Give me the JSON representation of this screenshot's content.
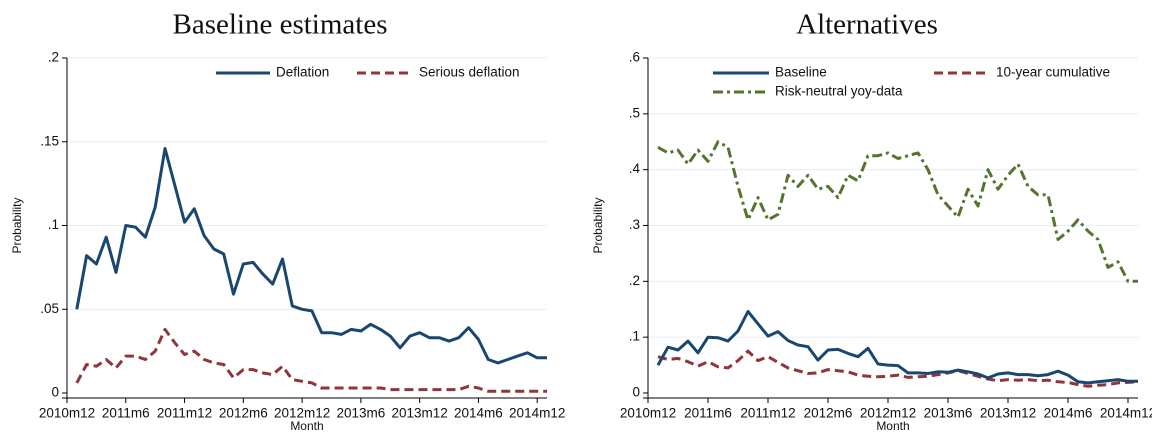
{
  "chart_data": [
    {
      "type": "line",
      "title": "Baseline estimates",
      "xlabel": "Month",
      "ylabel": "Probability",
      "ylim": [
        0,
        0.2
      ],
      "yticks": [
        0,
        0.05,
        0.1,
        0.15,
        0.2
      ],
      "yticklabels": [
        "0",
        ".05",
        ".1",
        ".15",
        ".2"
      ],
      "xlim": [
        -1,
        48
      ],
      "xticks": [
        -1,
        5,
        11,
        17,
        23,
        29,
        35,
        41,
        47
      ],
      "xticklabels": [
        "2010m12",
        "2011m6",
        "2011m12",
        "2012m6",
        "2012m12",
        "2013m6",
        "2013m12",
        "2014m6",
        "2014m12"
      ],
      "grid": true,
      "legend": "top-right",
      "series": [
        {
          "name": "Deflation",
          "color": "#1a476f",
          "style": "solid",
          "x": [
            0,
            1,
            2,
            3,
            4,
            5,
            6,
            7,
            8,
            9,
            10,
            11,
            12,
            13,
            14,
            15,
            16,
            17,
            18,
            19,
            20,
            21,
            22,
            23,
            24,
            25,
            26,
            27,
            28,
            29,
            30,
            31,
            32,
            33,
            34,
            35,
            36,
            37,
            38,
            39,
            40,
            41,
            42,
            43,
            44,
            45,
            46,
            47,
            48
          ],
          "values": [
            0.05,
            0.082,
            0.077,
            0.093,
            0.072,
            0.1,
            0.099,
            0.093,
            0.111,
            0.146,
            0.124,
            0.102,
            0.11,
            0.094,
            0.086,
            0.083,
            0.059,
            0.077,
            0.078,
            0.071,
            0.065,
            0.08,
            0.052,
            0.05,
            0.049,
            0.036,
            0.036,
            0.035,
            0.038,
            0.037,
            0.041,
            0.038,
            0.034,
            0.027,
            0.034,
            0.036,
            0.033,
            0.033,
            0.031,
            0.033,
            0.039,
            0.032,
            0.02,
            0.018,
            0.02,
            0.022,
            0.024,
            0.021,
            0.021
          ]
        },
        {
          "name": "Serious deflation",
          "color": "#90353b",
          "style": "dashed",
          "x": [
            0,
            1,
            2,
            3,
            4,
            5,
            6,
            7,
            8,
            9,
            10,
            11,
            12,
            13,
            14,
            15,
            16,
            17,
            18,
            19,
            20,
            21,
            22,
            23,
            24,
            25,
            26,
            27,
            28,
            29,
            30,
            31,
            32,
            33,
            34,
            35,
            36,
            37,
            38,
            39,
            40,
            41,
            42,
            43,
            44,
            45,
            46,
            47,
            48
          ],
          "values": [
            0.006,
            0.017,
            0.016,
            0.02,
            0.015,
            0.022,
            0.022,
            0.02,
            0.025,
            0.038,
            0.03,
            0.023,
            0.025,
            0.02,
            0.018,
            0.017,
            0.009,
            0.014,
            0.014,
            0.012,
            0.011,
            0.016,
            0.008,
            0.007,
            0.006,
            0.003,
            0.003,
            0.003,
            0.003,
            0.003,
            0.003,
            0.003,
            0.002,
            0.002,
            0.002,
            0.002,
            0.002,
            0.002,
            0.002,
            0.002,
            0.004,
            0.003,
            0.001,
            0.001,
            0.001,
            0.001,
            0.001,
            0.001,
            0.001
          ]
        }
      ]
    },
    {
      "type": "line",
      "title": "Alternatives",
      "xlabel": "Month",
      "ylabel": "Probability",
      "ylim": [
        0,
        0.6
      ],
      "yticks": [
        0,
        0.1,
        0.2,
        0.3,
        0.4,
        0.5,
        0.6
      ],
      "yticklabels": [
        "0",
        ".1",
        ".2",
        ".3",
        ".4",
        ".5",
        ".6"
      ],
      "xlim": [
        -1,
        48
      ],
      "xticks": [
        -1,
        5,
        11,
        17,
        23,
        29,
        35,
        41,
        47
      ],
      "xticklabels": [
        "2010m12",
        "2011m6",
        "2011m12",
        "2012m6",
        "2012m12",
        "2013m6",
        "2013m12",
        "2014m6",
        "2014m12"
      ],
      "grid": true,
      "legend": "top",
      "series": [
        {
          "name": "Baseline",
          "color": "#1a476f",
          "style": "solid",
          "x": [
            0,
            1,
            2,
            3,
            4,
            5,
            6,
            7,
            8,
            9,
            10,
            11,
            12,
            13,
            14,
            15,
            16,
            17,
            18,
            19,
            20,
            21,
            22,
            23,
            24,
            25,
            26,
            27,
            28,
            29,
            30,
            31,
            32,
            33,
            34,
            35,
            36,
            37,
            38,
            39,
            40,
            41,
            42,
            43,
            44,
            45,
            46,
            47,
            48
          ],
          "values": [
            0.05,
            0.082,
            0.077,
            0.093,
            0.072,
            0.1,
            0.099,
            0.093,
            0.111,
            0.146,
            0.124,
            0.102,
            0.11,
            0.094,
            0.086,
            0.083,
            0.059,
            0.077,
            0.078,
            0.071,
            0.065,
            0.08,
            0.052,
            0.05,
            0.049,
            0.036,
            0.036,
            0.035,
            0.038,
            0.037,
            0.041,
            0.038,
            0.034,
            0.027,
            0.034,
            0.036,
            0.033,
            0.033,
            0.031,
            0.033,
            0.039,
            0.032,
            0.02,
            0.018,
            0.02,
            0.022,
            0.024,
            0.021,
            0.021
          ]
        },
        {
          "name": "10-year cumulative",
          "color": "#90353b",
          "style": "dashed",
          "x": [
            0,
            1,
            2,
            3,
            4,
            5,
            6,
            7,
            8,
            9,
            10,
            11,
            12,
            13,
            14,
            15,
            16,
            17,
            18,
            19,
            20,
            21,
            22,
            23,
            24,
            25,
            26,
            27,
            28,
            29,
            30,
            31,
            32,
            33,
            34,
            35,
            36,
            37,
            38,
            39,
            40,
            41,
            42,
            43,
            44,
            45,
            46,
            47,
            48
          ],
          "values": [
            0.065,
            0.06,
            0.062,
            0.056,
            0.048,
            0.056,
            0.047,
            0.045,
            0.058,
            0.075,
            0.058,
            0.065,
            0.055,
            0.045,
            0.04,
            0.035,
            0.036,
            0.042,
            0.04,
            0.038,
            0.032,
            0.03,
            0.029,
            0.03,
            0.032,
            0.028,
            0.029,
            0.03,
            0.033,
            0.036,
            0.04,
            0.035,
            0.03,
            0.025,
            0.022,
            0.024,
            0.023,
            0.024,
            0.022,
            0.023,
            0.02,
            0.019,
            0.015,
            0.012,
            0.014,
            0.015,
            0.018,
            0.019,
            0.02
          ]
        },
        {
          "name": "Risk-neutral yoy-data",
          "color": "#55752f",
          "style": "dashdot",
          "x": [
            0,
            1,
            2,
            3,
            4,
            5,
            6,
            7,
            8,
            9,
            10,
            11,
            12,
            13,
            14,
            15,
            16,
            17,
            18,
            19,
            20,
            21,
            22,
            23,
            24,
            25,
            26,
            27,
            28,
            29,
            30,
            31,
            32,
            33,
            34,
            35,
            36,
            37,
            38,
            39,
            40,
            41,
            42,
            43,
            44,
            45,
            46,
            47,
            48
          ],
          "values": [
            0.44,
            0.43,
            0.435,
            0.41,
            0.435,
            0.415,
            0.45,
            0.44,
            0.37,
            0.31,
            0.35,
            0.31,
            0.32,
            0.39,
            0.37,
            0.39,
            0.365,
            0.37,
            0.35,
            0.39,
            0.38,
            0.425,
            0.425,
            0.43,
            0.42,
            0.425,
            0.43,
            0.4,
            0.355,
            0.335,
            0.315,
            0.365,
            0.335,
            0.4,
            0.365,
            0.39,
            0.41,
            0.37,
            0.355,
            0.355,
            0.275,
            0.29,
            0.31,
            0.29,
            0.275,
            0.225,
            0.235,
            0.2,
            0.2
          ]
        }
      ]
    }
  ]
}
